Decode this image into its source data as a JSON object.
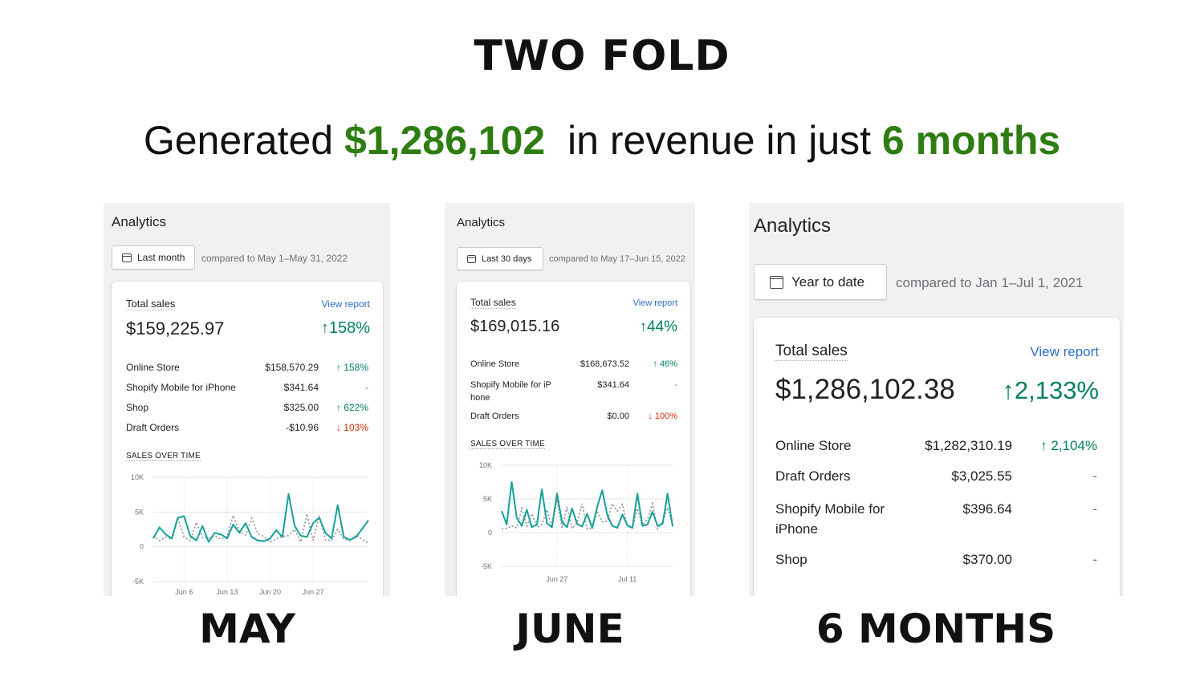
{
  "headline": "TWO FOLD",
  "subline": {
    "pre": "Generated ",
    "amount": "$1,286,102",
    "mid": "  in revenue in just ",
    "period": "6 months"
  },
  "captions": [
    "MAY",
    "JUNE",
    "6 MONTHS"
  ],
  "colors": {
    "accent_green": "#2e7d12",
    "series_current": "#14a198",
    "series_previous": "#8c9196",
    "positive": "#007f5f",
    "negative": "#d72c0d",
    "link": "#2c6ecb"
  },
  "panels": [
    {
      "title": "Analytics",
      "range_button": "Last month",
      "calendar_icon": "calendar-icon",
      "compared": "compared to May 1–May 31, 2022",
      "card": {
        "label": "Total sales",
        "view_report": "View report",
        "total": "$159,225.97",
        "change": "↑158%",
        "rows": [
          {
            "name": "Online Store",
            "amount": "$158,570.29",
            "change": "↑ 158%",
            "dir": "up"
          },
          {
            "name": "Shopify Mobile for iPhone",
            "amount": "$341.64",
            "change": "-",
            "dir": "none"
          },
          {
            "name": "Shop",
            "amount": "$325.00",
            "change": "↑ 622%",
            "dir": "up"
          },
          {
            "name": "Draft Orders",
            "amount": "-$10.96",
            "change": "↓ 103%",
            "dir": "down"
          }
        ],
        "sales_over_time": "SALES OVER TIME"
      }
    },
    {
      "title": "Analytics",
      "range_button": "Last 30 days",
      "calendar_icon": "calendar-icon",
      "compared": "compared to May 17–Jun 15, 2022",
      "card": {
        "label": "Total sales",
        "view_report": "View report",
        "total": "$169,015.16",
        "change": "↑44%",
        "rows": [
          {
            "name": "Online Store",
            "amount": "$168,673.52",
            "change": "↑ 46%",
            "dir": "up"
          },
          {
            "name": "Shopify Mobile for iP",
            "name2": "hone",
            "amount": "$341.64",
            "change": "-",
            "dir": "none"
          },
          {
            "name": "Draft Orders",
            "amount": "$0.00",
            "change": "↓ 100%",
            "dir": "down"
          }
        ],
        "sales_over_time": "SALES OVER TIME"
      }
    },
    {
      "title": "Analytics",
      "range_button": "Year to date",
      "calendar_icon": "calendar-icon",
      "compared": "compared to Jan 1–Jul 1, 2021",
      "card": {
        "label": "Total sales",
        "view_report": "View report",
        "total": "$1,286,102.38",
        "change": "↑2,133%",
        "rows": [
          {
            "name": "Online Store",
            "amount": "$1,282,310.19",
            "change": "↑ 2,104%",
            "dir": "up"
          },
          {
            "name": "Draft Orders",
            "amount": "$3,025.55",
            "change": "-",
            "dir": "none"
          },
          {
            "name": "Shopify Mobile for",
            "name2": "iPhone",
            "amount": "$396.64",
            "change": "-",
            "dir": "none"
          },
          {
            "name": "Shop",
            "amount": "$370.00",
            "change": "-",
            "dir": "none"
          }
        ]
      }
    }
  ],
  "chart_data": [
    {
      "type": "line",
      "title": "SALES OVER TIME",
      "ylim": [
        -5000,
        10000
      ],
      "y_ticks": [
        "10K",
        "5K",
        "0",
        "-5K"
      ],
      "y_tick_values": [
        10000,
        5000,
        0,
        -5000
      ],
      "x_ticks": [
        "Jun 6",
        "Jun 13",
        "Jun 20",
        "Jun 27"
      ],
      "x_tick_index": [
        5,
        12,
        19,
        26
      ],
      "grid": true,
      "series": [
        {
          "values": [
            1200,
            2800,
            1800,
            1200,
            4200,
            4400,
            1600,
            900,
            3000,
            700,
            2000,
            1800,
            1200,
            3200,
            2000,
            3400,
            1400,
            900,
            800,
            1200,
            2400,
            1400,
            7600,
            3000,
            1600,
            1400,
            3400,
            4200,
            2000,
            1200,
            6000,
            1400,
            1000,
            1400,
            2600,
            3800
          ]
        },
        {
          "values": [
            1600,
            900,
            1400,
            1100,
            4100,
            1400,
            900,
            3500,
            1300,
            1300,
            1600,
            1100,
            1500,
            4500,
            2200,
            1700,
            4100,
            1900,
            1500,
            700,
            1100,
            1500,
            1600,
            2500,
            700,
            4700,
            900,
            4500,
            1000,
            900,
            2500,
            1100,
            900,
            1700,
            1100,
            500
          ]
        }
      ]
    },
    {
      "type": "line",
      "title": "SALES OVER TIME",
      "ylim": [
        -5000,
        10000
      ],
      "y_ticks": [
        "10K",
        "5K",
        "0",
        "-5K"
      ],
      "y_tick_values": [
        10000,
        5000,
        0,
        -5000
      ],
      "x_ticks": [
        "Jun 27",
        "Jul 11"
      ],
      "x_tick_index": [
        11,
        25
      ],
      "grid": true,
      "series": [
        {
          "values": [
            3200,
            1200,
            7500,
            2200,
            1000,
            3400,
            800,
            1200,
            6400,
            1400,
            800,
            5800,
            1600,
            800,
            3600,
            1300,
            900,
            2800,
            700,
            3800,
            6300,
            2600,
            1000,
            700,
            2700,
            1100,
            700,
            5800,
            1000,
            1200,
            3100,
            1000,
            1300,
            5800,
            900
          ]
        },
        {
          "values": [
            600,
            600,
            1000,
            700,
            3600,
            1000,
            2800,
            800,
            1200,
            3400,
            800,
            4900,
            700,
            3800,
            600,
            1500,
            4300,
            500,
            600,
            3200,
            1600,
            1700,
            4300,
            3200,
            4200,
            900,
            700,
            3600,
            1100,
            2000,
            4300,
            600,
            1600,
            3700,
            1100
          ]
        }
      ]
    }
  ]
}
